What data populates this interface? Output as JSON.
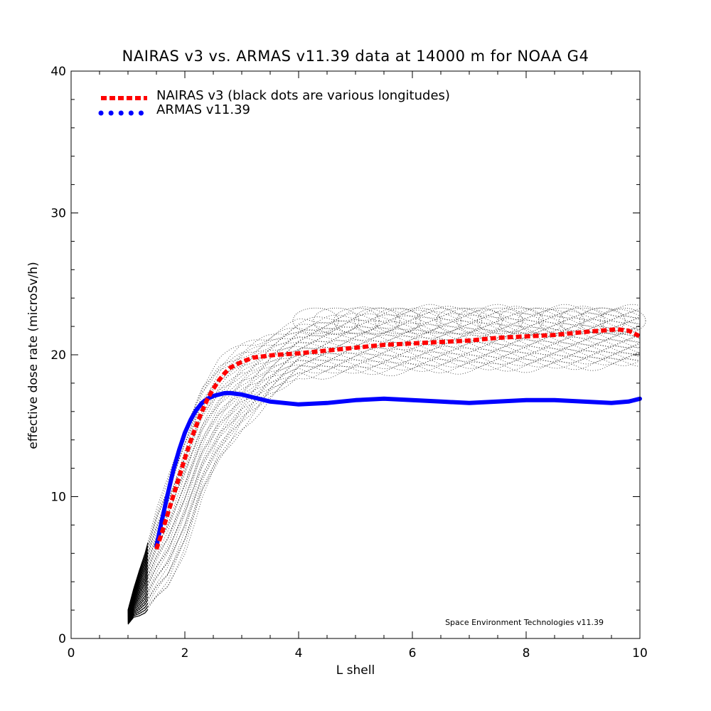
{
  "chart_data": {
    "type": "line",
    "title": "NAIRAS  v3 vs. ARMAS v11.39 data at 14000 m for NOAA G4",
    "xlabel": "L shell",
    "ylabel": "effective dose rate (microSv/h)",
    "xlim": [
      0,
      10
    ],
    "ylim": [
      0,
      40
    ],
    "x_ticks": [
      0,
      2,
      4,
      6,
      8,
      10
    ],
    "y_ticks": [
      0,
      10,
      20,
      30,
      40
    ],
    "x_minor_step": 0.5,
    "y_minor_step": 2,
    "grid": false,
    "legend_position": "top-left",
    "credit": "Space Environment Technologies v11.39",
    "colors": {
      "nairas": "#ff0000",
      "armas": "#0000ff",
      "scatter": "#000000"
    },
    "series": [
      {
        "name": "NAIRAS v3 (black dots are various longitudes)",
        "style": "dashed",
        "x": [
          1.5,
          1.6,
          1.7,
          1.8,
          1.9,
          2.0,
          2.1,
          2.2,
          2.3,
          2.4,
          2.5,
          2.6,
          2.7,
          2.8,
          3.0,
          3.2,
          3.4,
          3.6,
          4.0,
          4.5,
          5.0,
          5.5,
          6.0,
          6.5,
          7.0,
          7.5,
          8.0,
          8.5,
          9.0,
          9.3,
          9.6,
          9.8,
          10.0
        ],
        "y": [
          6.3,
          7.5,
          8.8,
          10.1,
          11.4,
          12.7,
          13.9,
          15.0,
          16.0,
          16.9,
          17.6,
          18.2,
          18.7,
          19.1,
          19.5,
          19.8,
          19.9,
          20.0,
          20.1,
          20.3,
          20.5,
          20.7,
          20.8,
          20.9,
          21.0,
          21.2,
          21.3,
          21.4,
          21.6,
          21.7,
          21.8,
          21.7,
          21.3
        ]
      },
      {
        "name": "ARMAS v11.39",
        "style": "solid",
        "x": [
          1.5,
          1.6,
          1.7,
          1.8,
          1.9,
          2.0,
          2.1,
          2.2,
          2.3,
          2.4,
          2.5,
          2.6,
          2.7,
          2.8,
          3.0,
          3.2,
          3.5,
          4.0,
          4.5,
          5.0,
          5.5,
          6.0,
          6.5,
          7.0,
          7.5,
          8.0,
          8.5,
          9.0,
          9.5,
          9.8,
          10.0
        ],
        "y": [
          6.5,
          8.4,
          10.2,
          11.9,
          13.3,
          14.5,
          15.4,
          16.1,
          16.6,
          16.9,
          17.1,
          17.2,
          17.3,
          17.3,
          17.2,
          17.0,
          16.7,
          16.5,
          16.6,
          16.8,
          16.9,
          16.8,
          16.7,
          16.6,
          16.7,
          16.8,
          16.8,
          16.7,
          16.6,
          16.7,
          16.9
        ]
      }
    ],
    "scatter_envelope": {
      "x": [
        1.0,
        1.1,
        1.2,
        1.3,
        1.5,
        1.7,
        2.0,
        2.3,
        2.6,
        3.0,
        3.5,
        4.0,
        5.0,
        6.0,
        7.0,
        8.0,
        9.0,
        10.0
      ],
      "y_low": [
        1.0,
        1.5,
        1.6,
        1.8,
        2.8,
        3.6,
        6.2,
        10.0,
        12.5,
        14.8,
        17.0,
        18.5,
        18.8,
        18.9,
        19.0,
        19.1,
        19.2,
        19.4
      ],
      "y_high": [
        2.0,
        3.5,
        4.8,
        6.0,
        9.0,
        11.2,
        14.8,
        17.8,
        19.5,
        20.6,
        21.4,
        22.2,
        23.0,
        23.2,
        23.2,
        23.2,
        23.2,
        23.2
      ]
    }
  }
}
